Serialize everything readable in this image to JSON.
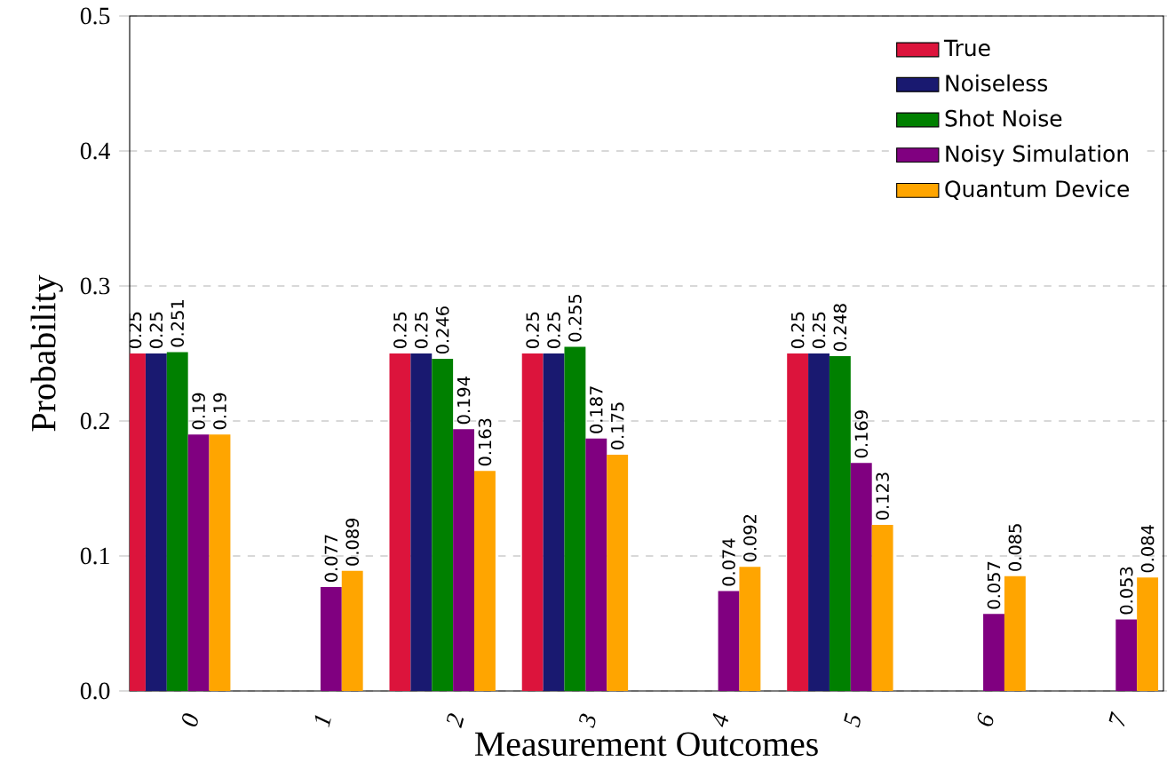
{
  "chart_data": {
    "type": "bar",
    "xlabel": "Measurement Outcomes",
    "ylabel": "Probability",
    "categories": [
      "0",
      "1",
      "2",
      "3",
      "4",
      "5",
      "6",
      "7"
    ],
    "series": [
      {
        "name": "True",
        "color": "#dc143c",
        "values": [
          0.25,
          0,
          0.25,
          0.25,
          0,
          0.25,
          0,
          0
        ],
        "value_labels": [
          "0.25",
          null,
          "0.25",
          "0.25",
          null,
          "0.25",
          null,
          null
        ]
      },
      {
        "name": "Noiseless",
        "color": "#191970",
        "values": [
          0.25,
          0,
          0.25,
          0.25,
          0,
          0.25,
          0,
          0
        ],
        "value_labels": [
          "0.25",
          null,
          "0.25",
          "0.25",
          null,
          "0.25",
          null,
          null
        ]
      },
      {
        "name": "Shot Noise",
        "color": "#008000",
        "values": [
          0.251,
          0,
          0.246,
          0.255,
          0,
          0.248,
          0,
          0
        ],
        "value_labels": [
          "0.251",
          null,
          "0.246",
          "0.255",
          null,
          "0.248",
          null,
          null
        ]
      },
      {
        "name": "Noisy Simulation",
        "color": "#800080",
        "values": [
          0.19,
          0.077,
          0.194,
          0.187,
          0.074,
          0.169,
          0.057,
          0.053
        ],
        "value_labels": [
          "0.19",
          "0.077",
          "0.194",
          "0.187",
          "0.074",
          "0.169",
          "0.057",
          "0.053"
        ]
      },
      {
        "name": "Quantum Device",
        "color": "#ffa500",
        "values": [
          0.19,
          0.089,
          0.163,
          0.175,
          0.092,
          0.123,
          0.085,
          0.084
        ],
        "value_labels": [
          "0.19",
          "0.089",
          "0.163",
          "0.175",
          "0.092",
          "0.123",
          "0.085",
          "0.084"
        ]
      }
    ],
    "ylim": [
      0,
      0.5
    ],
    "yticks": [
      {
        "value": 0,
        "label": "0.0"
      },
      {
        "value": 0.1,
        "label": "0.1"
      },
      {
        "value": 0.2,
        "label": "0.2"
      },
      {
        "value": 0.3,
        "label": "0.3"
      },
      {
        "value": 0.4,
        "label": "0.4"
      },
      {
        "value": 0.5,
        "label": "0.5"
      }
    ],
    "grid": "y",
    "legend": "top right"
  }
}
